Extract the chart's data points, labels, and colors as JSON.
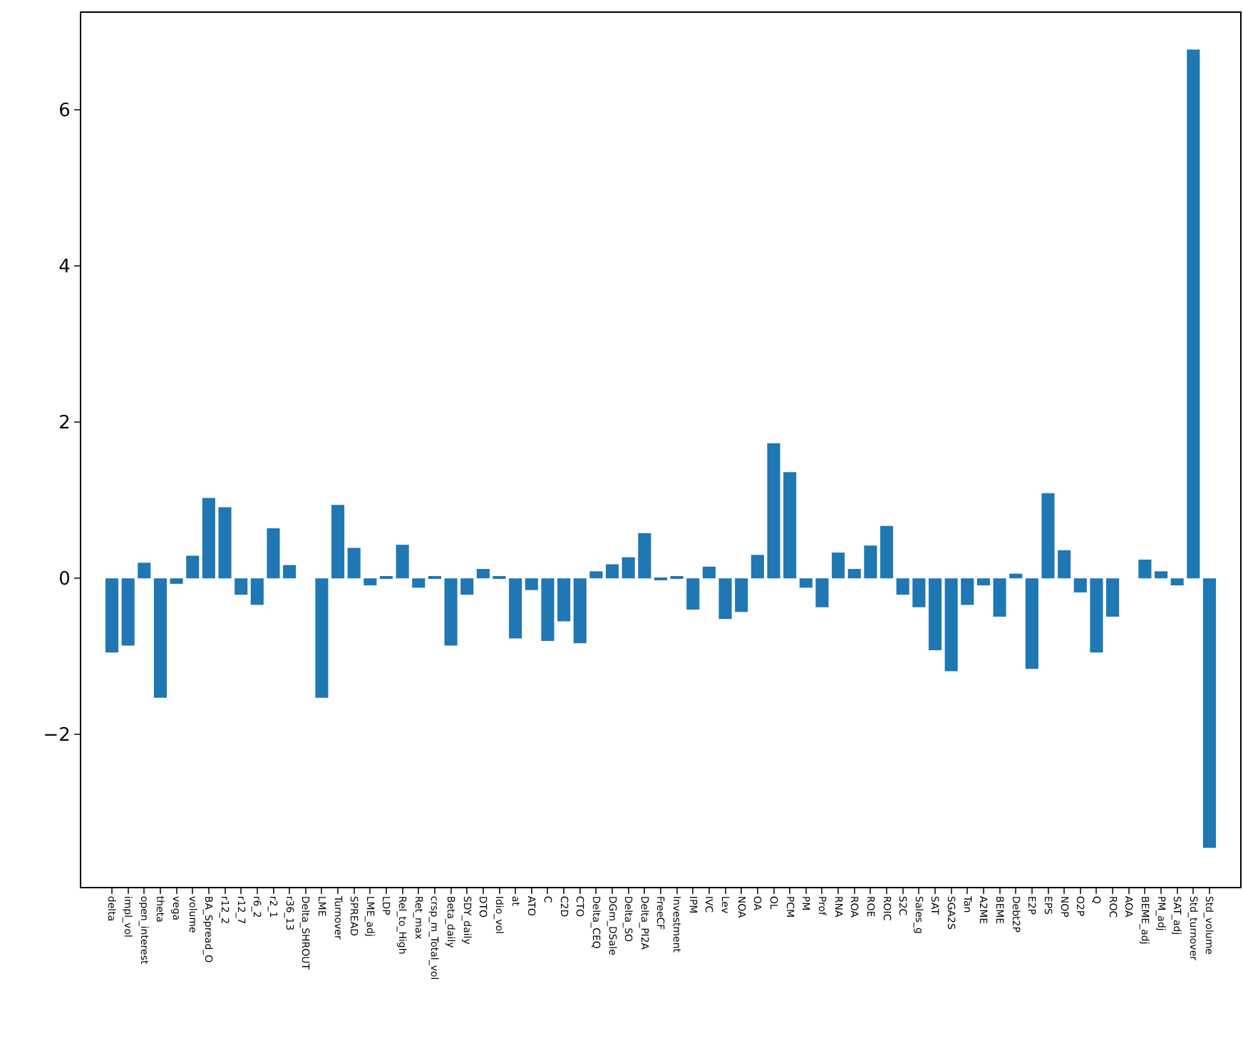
{
  "chart_data": {
    "type": "bar",
    "categories": [
      "delta",
      "impl_vol",
      "open_interest",
      "theta",
      "vega",
      "volume",
      "BA_Spread_O",
      "r12_2",
      "r12_7",
      "r6_2",
      "r2_1",
      "r36_13",
      "Delta_SHROUT",
      "LME",
      "Turnover",
      "SPREAD",
      "LME_adj",
      "LDP",
      "Rel_to_High",
      "Ret_max",
      "crsp_m_Total_vol",
      "Beta_daily",
      "SDY_daily",
      "DTO",
      "Idio_vol",
      "at",
      "ATO",
      "C",
      "C2D",
      "CTO",
      "Delta_CEQ",
      "DGm_DSale",
      "Delta_SO",
      "Delta_PI2A",
      "FreeCF",
      "Investment",
      "IPM",
      "IVC",
      "Lev",
      "NOA",
      "OA",
      "OL",
      "PCM",
      "PM",
      "Prof",
      "RNA",
      "ROA",
      "ROE",
      "ROIC",
      "S2C",
      "Sales_g",
      "SAT",
      "SGA2S",
      "Tan",
      "A2ME",
      "BEME",
      "Debt2P",
      "E2P",
      "EPS",
      "NOP",
      "O2P",
      "Q",
      "ROC",
      "AOA",
      "BEME_adj",
      "PM_adj",
      "SAT_adj",
      "Std_turnover",
      "Std_volume"
    ],
    "values": [
      -0.95,
      -0.86,
      0.2,
      -1.53,
      -0.07,
      0.29,
      1.03,
      0.91,
      -0.21,
      -0.34,
      0.64,
      0.17,
      0,
      -1.53,
      0.94,
      0.39,
      -0.09,
      0.02,
      0.43,
      -0.12,
      0.02,
      -0.86,
      -0.21,
      0.12,
      0.02,
      -0.77,
      -0.15,
      -0.8,
      -0.55,
      -0.83,
      0.09,
      0.18,
      0.27,
      0.58,
      -0.02,
      0.02,
      -0.4,
      0.15,
      -0.52,
      -0.43,
      0.3,
      1.73,
      1.36,
      -0.12,
      -0.37,
      0.33,
      0.12,
      0.42,
      0.67,
      -0.21,
      -0.37,
      -0.92,
      -1.19,
      -0.34,
      -0.09,
      -0.49,
      0.06,
      -1.16,
      1.09,
      0.36,
      -0.18,
      -0.95,
      -0.49,
      0,
      0.24,
      0.09,
      -0.09,
      6.77,
      -3.45
    ],
    "color": "#1f77b4",
    "ylim": [
      -3.95,
      7.24
    ],
    "yticks": [
      -2,
      0,
      2,
      4,
      6
    ]
  }
}
